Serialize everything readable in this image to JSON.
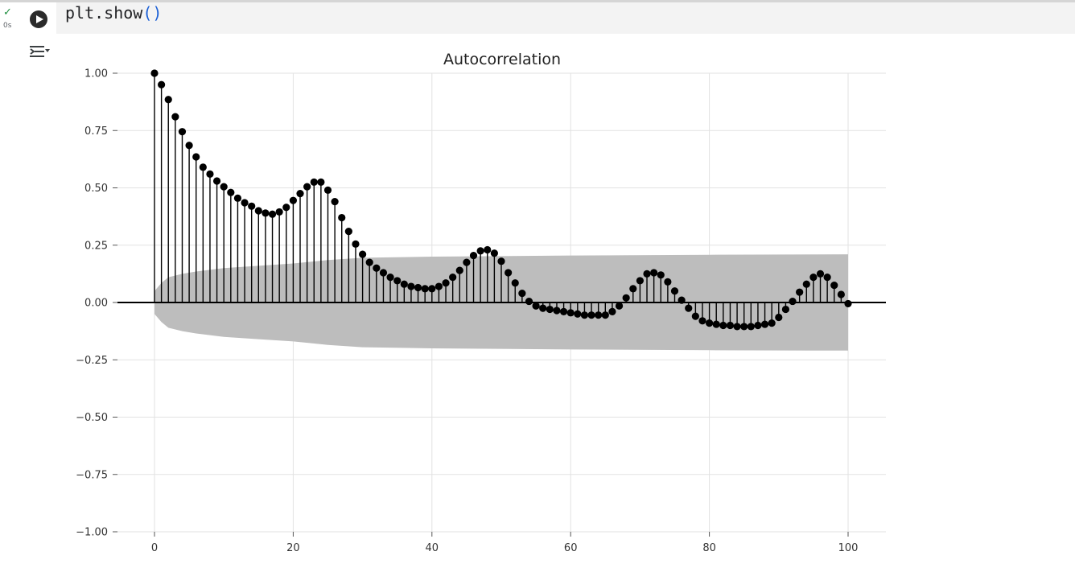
{
  "cell": {
    "code_text": "plt.show",
    "code_parens": "()",
    "status_icon": "check-icon",
    "exec_time": "0s",
    "run_icon": "play-icon",
    "output_toggle_icon": "output-collapse-icon"
  },
  "chart_data": {
    "type": "stem",
    "title": "Autocorrelation",
    "xlabel": "",
    "ylabel": "",
    "xlim": [
      -2,
      105
    ],
    "ylim": [
      -1.0,
      1.0
    ],
    "x_ticks": [
      "0",
      "20",
      "40",
      "60",
      "80",
      "100"
    ],
    "y_ticks": [
      "1.00",
      "0.75",
      "0.50",
      "0.25",
      "0.00",
      "−0.25",
      "−0.50",
      "−0.75",
      "−1.00"
    ],
    "grid": true,
    "lags": [
      0,
      1,
      2,
      3,
      4,
      5,
      6,
      7,
      8,
      9,
      10,
      11,
      12,
      13,
      14,
      15,
      16,
      17,
      18,
      19,
      20,
      21,
      22,
      23,
      24,
      25,
      26,
      27,
      28,
      29,
      30,
      31,
      32,
      33,
      34,
      35,
      36,
      37,
      38,
      39,
      40,
      41,
      42,
      43,
      44,
      45,
      46,
      47,
      48,
      49,
      50,
      51,
      52,
      53,
      54,
      55,
      56,
      57,
      58,
      59,
      60,
      61,
      62,
      63,
      64,
      65,
      66,
      67,
      68,
      69,
      70,
      71,
      72,
      73,
      74,
      75,
      76,
      77,
      78,
      79,
      80,
      81,
      82,
      83,
      84,
      85,
      86,
      87,
      88,
      89,
      90,
      91,
      92,
      93,
      94,
      95,
      96,
      97,
      98,
      99,
      100
    ],
    "values": [
      1.0,
      0.95,
      0.885,
      0.81,
      0.745,
      0.685,
      0.635,
      0.59,
      0.56,
      0.53,
      0.505,
      0.48,
      0.455,
      0.435,
      0.42,
      0.4,
      0.39,
      0.385,
      0.395,
      0.415,
      0.445,
      0.475,
      0.505,
      0.525,
      0.525,
      0.49,
      0.44,
      0.37,
      0.31,
      0.255,
      0.21,
      0.175,
      0.15,
      0.13,
      0.11,
      0.095,
      0.08,
      0.07,
      0.065,
      0.06,
      0.06,
      0.07,
      0.085,
      0.11,
      0.14,
      0.175,
      0.205,
      0.225,
      0.23,
      0.215,
      0.18,
      0.13,
      0.085,
      0.04,
      0.005,
      -0.015,
      -0.025,
      -0.03,
      -0.035,
      -0.04,
      -0.045,
      -0.05,
      -0.055,
      -0.055,
      -0.055,
      -0.055,
      -0.04,
      -0.015,
      0.02,
      0.06,
      0.095,
      0.125,
      0.13,
      0.12,
      0.09,
      0.05,
      0.01,
      -0.025,
      -0.06,
      -0.08,
      -0.09,
      -0.095,
      -0.1,
      -0.1,
      -0.105,
      -0.105,
      -0.105,
      -0.1,
      -0.095,
      -0.09,
      -0.065,
      -0.03,
      0.005,
      0.045,
      0.08,
      0.11,
      0.125,
      0.11,
      0.075,
      0.035,
      -0.005
    ],
    "confidence_band": {
      "lags": [
        0,
        1,
        2,
        4,
        6,
        10,
        15,
        20,
        25,
        30,
        40,
        60,
        80,
        100
      ],
      "upper": [
        0.05,
        0.085,
        0.11,
        0.125,
        0.135,
        0.15,
        0.16,
        0.17,
        0.185,
        0.195,
        0.2,
        0.205,
        0.208,
        0.21
      ],
      "lower": [
        -0.05,
        -0.085,
        -0.11,
        -0.125,
        -0.135,
        -0.15,
        -0.16,
        -0.17,
        -0.185,
        -0.195,
        -0.2,
        -0.205,
        -0.208,
        -0.21
      ]
    },
    "colors": {
      "stem": "#000000",
      "marker": "#000000",
      "band": "#bdbdbd",
      "grid": "#e2e2e2",
      "zero_line": "#000000"
    }
  }
}
